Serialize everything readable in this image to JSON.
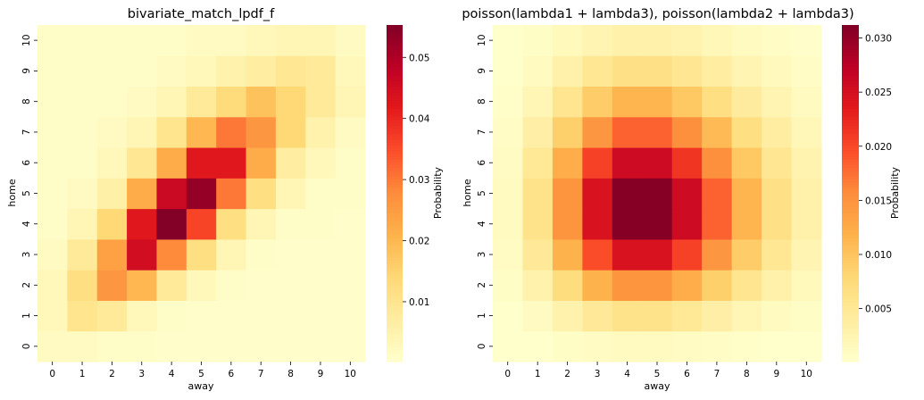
{
  "colormap": [
    "#ffffcc",
    "#ffeda0",
    "#fed976",
    "#feb24c",
    "#fd8d3c",
    "#fc4e2a",
    "#e31a1c",
    "#bd0026",
    "#800026"
  ],
  "chart_data": [
    {
      "type": "heatmap",
      "title": "bivariate_match_lpdf_f",
      "xlabel": "away",
      "ylabel": "home",
      "x": [
        0,
        1,
        2,
        3,
        4,
        5,
        6,
        7,
        8,
        9,
        10
      ],
      "y": [
        0,
        1,
        2,
        3,
        4,
        5,
        6,
        7,
        8,
        9,
        10
      ],
      "y_order": "descending from top",
      "colorbar": {
        "label": "Probability",
        "range": [
          0.0002,
          0.0553
        ],
        "ticks": [
          0.01,
          0.02,
          0.03,
          0.04,
          0.05
        ],
        "tick_labels": [
          "0.01",
          "0.02",
          "0.03",
          "0.04",
          "0.05"
        ]
      },
      "values": [
        [
          0.002,
          0.002,
          0.001,
          0.001,
          0.0005,
          0.0005,
          0.0005,
          0.0005,
          0.0005,
          0.0005,
          0.0005
        ],
        [
          0.003,
          0.01,
          0.008,
          0.003,
          0.001,
          0.0005,
          0.0005,
          0.0005,
          0.0005,
          0.0005,
          0.0005
        ],
        [
          0.003,
          0.012,
          0.026,
          0.02,
          0.008,
          0.003,
          0.001,
          0.0005,
          0.0005,
          0.0005,
          0.0005
        ],
        [
          0.002,
          0.008,
          0.024,
          0.045,
          0.028,
          0.012,
          0.004,
          0.001,
          0.0005,
          0.0005,
          0.0005
        ],
        [
          0.001,
          0.004,
          0.014,
          0.042,
          0.055,
          0.036,
          0.012,
          0.004,
          0.001,
          0.001,
          0.0005
        ],
        [
          0.001,
          0.002,
          0.006,
          0.022,
          0.046,
          0.053,
          0.03,
          0.012,
          0.004,
          0.001,
          0.001
        ],
        [
          0.001,
          0.001,
          0.003,
          0.009,
          0.022,
          0.042,
          0.042,
          0.022,
          0.007,
          0.003,
          0.001
        ],
        [
          0.001,
          0.001,
          0.002,
          0.004,
          0.01,
          0.02,
          0.03,
          0.026,
          0.014,
          0.005,
          0.002
        ],
        [
          0.001,
          0.001,
          0.001,
          0.002,
          0.004,
          0.008,
          0.013,
          0.018,
          0.014,
          0.008,
          0.004
        ],
        [
          0.001,
          0.001,
          0.001,
          0.001,
          0.002,
          0.003,
          0.005,
          0.007,
          0.009,
          0.008,
          0.003
        ],
        [
          0.001,
          0.001,
          0.001,
          0.001,
          0.001,
          0.002,
          0.002,
          0.003,
          0.004,
          0.004,
          0.002
        ]
      ]
    },
    {
      "type": "heatmap",
      "title": "poisson(lambda1 + lambda3), poisson(lambda2 + lambda3)",
      "xlabel": "away",
      "ylabel": "home",
      "x": [
        0,
        1,
        2,
        3,
        4,
        5,
        6,
        7,
        8,
        9,
        10
      ],
      "y": [
        0,
        1,
        2,
        3,
        4,
        5,
        6,
        7,
        8,
        9,
        10
      ],
      "y_order": "descending from top",
      "colorbar": {
        "label": "Probability",
        "range": [
          0.0001,
          0.0312
        ],
        "ticks": [
          0.005,
          0.01,
          0.015,
          0.02,
          0.025,
          0.03
        ],
        "tick_labels": [
          "0.005",
          "0.010",
          "0.015",
          "0.020",
          "0.025",
          "0.030"
        ]
      },
      "values": [
        [
          0.0,
          0.0002,
          0.0006,
          0.0009,
          0.0012,
          0.0012,
          0.001,
          0.0007,
          0.0004,
          0.0002,
          0.0001
        ],
        [
          0.0002,
          0.0011,
          0.0028,
          0.0047,
          0.0059,
          0.0059,
          0.0049,
          0.0035,
          0.0022,
          0.0012,
          0.0006
        ],
        [
          0.0006,
          0.0028,
          0.0071,
          0.0118,
          0.0148,
          0.0148,
          0.0123,
          0.0088,
          0.0055,
          0.0031,
          0.0015
        ],
        [
          0.0009,
          0.0047,
          0.0118,
          0.0197,
          0.0246,
          0.0246,
          0.0205,
          0.0147,
          0.0092,
          0.0051,
          0.0025
        ],
        [
          0.0012,
          0.0059,
          0.0148,
          0.0246,
          0.0308,
          0.0308,
          0.0257,
          0.0183,
          0.0115,
          0.0064,
          0.0032
        ],
        [
          0.0012,
          0.0059,
          0.0148,
          0.0246,
          0.0308,
          0.0308,
          0.0257,
          0.0183,
          0.0115,
          0.0064,
          0.0032
        ],
        [
          0.001,
          0.0049,
          0.0123,
          0.0205,
          0.0257,
          0.0257,
          0.0214,
          0.0153,
          0.0096,
          0.0053,
          0.0027
        ],
        [
          0.0007,
          0.0035,
          0.0088,
          0.0147,
          0.0183,
          0.0183,
          0.0153,
          0.0109,
          0.0068,
          0.0038,
          0.0019
        ],
        [
          0.0004,
          0.0022,
          0.0055,
          0.0092,
          0.0115,
          0.0115,
          0.0096,
          0.0068,
          0.0043,
          0.0024,
          0.0012
        ],
        [
          0.0002,
          0.0012,
          0.0031,
          0.0051,
          0.0064,
          0.0064,
          0.0053,
          0.0038,
          0.0024,
          0.0013,
          0.0007
        ],
        [
          0.0001,
          0.0006,
          0.0015,
          0.0025,
          0.0032,
          0.0032,
          0.0027,
          0.0019,
          0.0012,
          0.0007,
          0.0003
        ]
      ]
    }
  ]
}
